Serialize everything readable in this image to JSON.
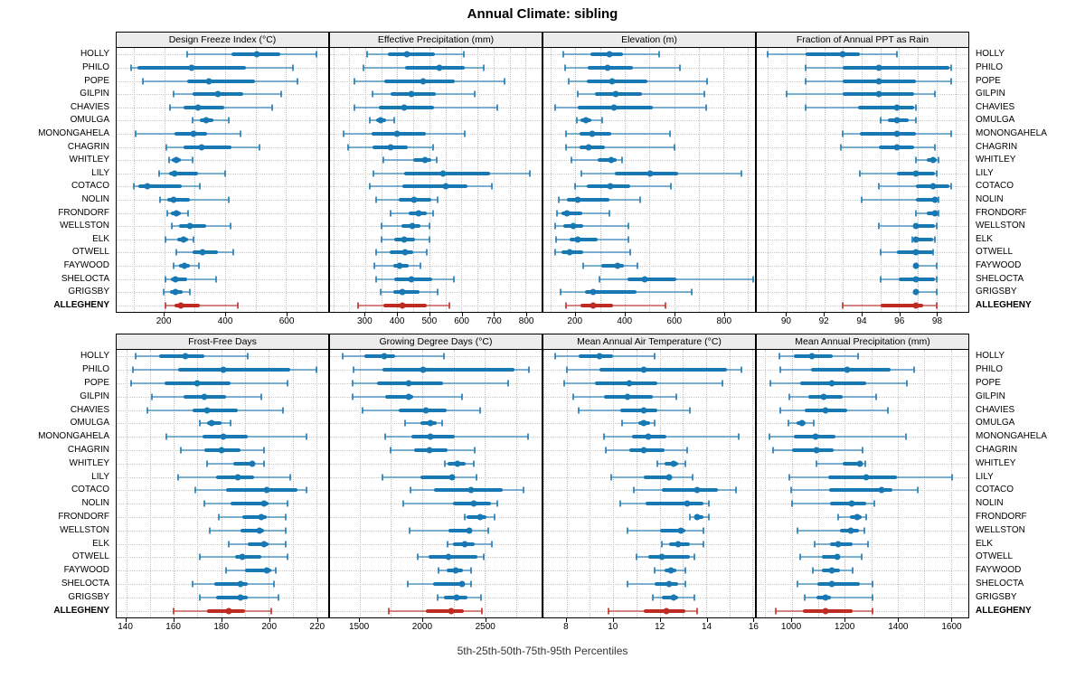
{
  "title": "Annual Climate: sibling",
  "footer": "5th-25th-50th-75th-95th Percentiles",
  "colors": {
    "series": "#1878b4",
    "highlight": "#bd2b23",
    "strip_bg": "#ececec",
    "grid": "#bfbfbf"
  },
  "sites": [
    "HOLLY",
    "PHILO",
    "POPE",
    "GILPIN",
    "CHAVIES",
    "OMULGA",
    "MONONGAHELA",
    "CHAGRIN",
    "WHITLEY",
    "LILY",
    "COTACO",
    "NOLIN",
    "FRONDORF",
    "WELLSTON",
    "ELK",
    "OTWELL",
    "FAYWOOD",
    "SHELOCTA",
    "GRIGSBY",
    "ALLEGHENY"
  ],
  "highlight_site": "ALLEGHENY",
  "percentile_labels": [
    "5th",
    "25th",
    "50th",
    "75th",
    "95th"
  ],
  "chart_data": [
    {
      "type": "dotplot-interval",
      "title": "Design Freeze Index (°C)",
      "xlim": [
        44,
        738
      ],
      "ticks": [
        200,
        400,
        600
      ],
      "grid_step": 100,
      "values": [
        [
          276,
          421,
          505,
          582,
          698
        ],
        [
          90,
          112,
          291,
          469,
          621
        ],
        [
          130,
          274,
          347,
          497,
          638
        ],
        [
          231,
          293,
          376,
          460,
          584
        ],
        [
          220,
          262,
          311,
          396,
          553
        ],
        [
          293,
          318,
          337,
          362,
          411
        ],
        [
          107,
          234,
          295,
          342,
          450
        ],
        [
          207,
          264,
          323,
          420,
          514
        ],
        [
          217,
          226,
          239,
          254,
          293
        ],
        [
          183,
          217,
          234,
          311,
          399
        ],
        [
          100,
          115,
          144,
          259,
          318
        ],
        [
          185,
          210,
          232,
          283,
          411
        ],
        [
          210,
          223,
          239,
          256,
          278
        ],
        [
          225,
          249,
          283,
          337,
          419
        ],
        [
          203,
          242,
          262,
          278,
          296
        ],
        [
          239,
          293,
          327,
          376,
          428
        ],
        [
          232,
          249,
          266,
          283,
          313
        ],
        [
          205,
          223,
          237,
          274,
          370
        ],
        [
          198,
          220,
          237,
          262,
          283
        ],
        [
          205,
          234,
          256,
          318,
          442
        ]
      ]
    },
    {
      "type": "dotplot-interval",
      "title": "Effective Precipitation (mm)",
      "xlim": [
        190,
        850
      ],
      "ticks": [
        300,
        400,
        500,
        600,
        700,
        800
      ],
      "grid_step": 50,
      "values": [
        [
          305,
          370,
          429,
          517,
          607
        ],
        [
          295,
          424,
          531,
          609,
          669
        ],
        [
          267,
          359,
          480,
          580,
          735
        ],
        [
          322,
          378,
          445,
          520,
          641
        ],
        [
          267,
          342,
          422,
          515,
          711
        ],
        [
          314,
          333,
          348,
          364,
          389
        ],
        [
          232,
          321,
          398,
          489,
          609
        ],
        [
          247,
          323,
          379,
          434,
          512
        ],
        [
          356,
          450,
          487,
          506,
          522
        ],
        [
          325,
          422,
          543,
          688,
          812
        ],
        [
          314,
          417,
          551,
          618,
          695
        ],
        [
          333,
          403,
          452,
          506,
          527
        ],
        [
          378,
          436,
          466,
          492,
          512
        ],
        [
          350,
          412,
          448,
          473,
          501
        ],
        [
          350,
          391,
          420,
          454,
          501
        ],
        [
          335,
          375,
          424,
          450,
          492
        ],
        [
          328,
          387,
          408,
          434,
          473
        ],
        [
          335,
          391,
          443,
          510,
          576
        ],
        [
          347,
          387,
          417,
          468,
          527
        ],
        [
          277,
          356,
          415,
          492,
          562
        ]
      ]
    },
    {
      "type": "dotplot-interval",
      "title": "Elevation (m)",
      "xlim": [
        70,
        928
      ],
      "ticks": [
        200,
        400,
        600,
        800
      ],
      "grid_step": 100,
      "values": [
        [
          152,
          261,
          336,
          394,
          539
        ],
        [
          158,
          251,
          330,
          433,
          624
        ],
        [
          172,
          245,
          348,
          490,
          733
        ],
        [
          208,
          279,
          362,
          469,
          721
        ],
        [
          118,
          211,
          356,
          514,
          730
        ],
        [
          206,
          221,
          241,
          263,
          308
        ],
        [
          160,
          215,
          267,
          345,
          582
        ],
        [
          160,
          218,
          255,
          318,
          602
        ],
        [
          184,
          291,
          344,
          368,
          388
        ],
        [
          224,
          360,
          503,
          615,
          873
        ],
        [
          200,
          245,
          342,
          423,
          587
        ],
        [
          132,
          166,
          208,
          336,
          463
        ],
        [
          124,
          142,
          166,
          227,
          339
        ],
        [
          118,
          150,
          190,
          233,
          414
        ],
        [
          121,
          175,
          211,
          291,
          414
        ],
        [
          118,
          145,
          178,
          233,
          423
        ],
        [
          230,
          305,
          372,
          395,
          453
        ],
        [
          299,
          412,
          479,
          608,
          921
        ],
        [
          139,
          239,
          272,
          448,
          673
        ],
        [
          160,
          221,
          272,
          354,
          564
        ]
      ]
    },
    {
      "type": "dotplot-interval",
      "title": "Fraction of Annual PPT as Rain",
      "xlim": [
        88.4,
        99.7
      ],
      "ticks": [
        90,
        92,
        94,
        96,
        98
      ],
      "grid_step": 1,
      "values": [
        [
          89.0,
          91.0,
          93.0,
          93.9,
          95.9
        ],
        [
          91.0,
          93.0,
          94.9,
          98.7,
          98.8
        ],
        [
          91.0,
          93.0,
          94.9,
          96.9,
          98.8
        ],
        [
          90.0,
          93.0,
          94.9,
          96.8,
          97.9
        ],
        [
          91.0,
          93.8,
          95.9,
          96.8,
          96.9
        ],
        [
          95.0,
          95.4,
          95.9,
          96.5,
          96.9
        ],
        [
          93.0,
          93.9,
          95.9,
          96.9,
          98.8
        ],
        [
          92.9,
          94.9,
          95.9,
          96.8,
          97.9
        ],
        [
          96.9,
          97.5,
          97.8,
          98.0,
          98.1
        ],
        [
          93.9,
          95.9,
          96.9,
          97.9,
          98.0
        ],
        [
          94.9,
          96.9,
          97.8,
          98.7,
          98.8
        ],
        [
          94.0,
          96.9,
          97.9,
          98.0,
          98.1
        ],
        [
          96.9,
          97.5,
          97.9,
          98.0,
          98.1
        ],
        [
          94.9,
          96.8,
          96.9,
          97.9,
          98.0
        ],
        [
          96.7,
          96.8,
          96.9,
          97.8,
          97.9
        ],
        [
          95.0,
          95.9,
          96.9,
          97.8,
          97.8
        ],
        [
          96.9,
          96.9,
          96.9,
          97.0,
          98.0
        ],
        [
          95.0,
          96.0,
          96.9,
          97.9,
          98.0
        ],
        [
          96.9,
          96.9,
          96.9,
          97.0,
          98.0
        ],
        [
          93.0,
          95.0,
          96.9,
          97.3,
          98.0
        ]
      ]
    },
    {
      "type": "dotplot-interval",
      "title": "Frost-Free Days",
      "xlim": [
        136,
        225
      ],
      "ticks": [
        140,
        160,
        180,
        200,
        220
      ],
      "grid_step": 10,
      "values": [
        [
          144,
          154,
          165,
          173,
          191
        ],
        [
          143,
          162,
          181,
          209,
          220
        ],
        [
          142,
          156,
          170,
          184,
          208
        ],
        [
          151,
          164,
          173,
          182,
          197
        ],
        [
          149,
          168,
          174,
          187,
          206
        ],
        [
          171,
          174,
          176,
          180,
          184
        ],
        [
          157,
          172,
          181,
          191,
          216
        ],
        [
          163,
          173,
          180,
          188,
          198
        ],
        [
          174,
          185,
          193,
          194,
          198
        ],
        [
          162,
          178,
          187,
          194,
          209
        ],
        [
          169,
          182,
          199,
          212,
          216
        ],
        [
          173,
          184,
          198,
          200,
          208
        ],
        [
          179,
          189,
          197,
          199,
          207
        ],
        [
          175,
          188,
          196,
          198,
          207
        ],
        [
          183,
          191,
          198,
          200,
          207
        ],
        [
          171,
          186,
          189,
          197,
          208
        ],
        [
          182,
          190,
          199,
          201,
          203
        ],
        [
          168,
          177,
          188,
          191,
          202
        ],
        [
          171,
          178,
          188,
          191,
          204
        ],
        [
          160,
          174,
          183,
          190,
          201
        ]
      ]
    },
    {
      "type": "dotplot-interval",
      "title": "Growing Degree Days (°C)",
      "xlim": [
        1263,
        2953
      ],
      "ticks": [
        1500,
        2000,
        2500
      ],
      "grid_step": 250,
      "values": [
        [
          1361,
          1534,
          1697,
          1781,
          2171
        ],
        [
          1452,
          1685,
          2004,
          2740,
          2852
        ],
        [
          1445,
          1637,
          1893,
          2164,
          2685
        ],
        [
          1445,
          1701,
          1893,
          1924,
          2315
        ],
        [
          1524,
          1812,
          2032,
          2195,
          2459
        ],
        [
          1860,
          1984,
          2068,
          2116,
          2157
        ],
        [
          1701,
          1912,
          2068,
          2260,
          2843
        ],
        [
          1749,
          1932,
          2061,
          2205,
          2416
        ],
        [
          2181,
          2205,
          2284,
          2344,
          2411
        ],
        [
          1685,
          1984,
          2236,
          2243,
          2435
        ],
        [
          1908,
          2092,
          2392,
          2644,
          2812
        ],
        [
          1848,
          2248,
          2409,
          2548,
          2596
        ],
        [
          2339,
          2356,
          2459,
          2512,
          2579
        ],
        [
          1900,
          2212,
          2373,
          2380,
          2529
        ],
        [
          2205,
          2248,
          2337,
          2416,
          2555
        ],
        [
          1965,
          2052,
          2212,
          2440,
          2493
        ],
        [
          2133,
          2195,
          2267,
          2325,
          2392
        ],
        [
          1884,
          2085,
          2315,
          2332,
          2387
        ],
        [
          2123,
          2176,
          2272,
          2363,
          2469
        ],
        [
          1733,
          2032,
          2229,
          2332,
          2476
        ]
      ]
    },
    {
      "type": "dotplot-interval",
      "title": "Mean Annual Air Temperature (°C)",
      "xlim": [
        7.0,
        16.1
      ],
      "ticks": [
        8,
        10,
        12,
        14,
        16
      ],
      "grid_step": 1,
      "values": [
        [
          7.5,
          8.5,
          9.4,
          10.0,
          11.8
        ],
        [
          8.0,
          9.4,
          11.3,
          14.9,
          15.5
        ],
        [
          7.9,
          9.2,
          10.7,
          11.9,
          14.7
        ],
        [
          8.3,
          9.6,
          10.6,
          11.7,
          12.7
        ],
        [
          8.5,
          10.3,
          11.3,
          11.9,
          13.3
        ],
        [
          10.4,
          11.1,
          11.3,
          11.6,
          11.8
        ],
        [
          9.6,
          10.8,
          11.5,
          12.3,
          15.4
        ],
        [
          9.7,
          10.7,
          11.3,
          12.2,
          13.2
        ],
        [
          11.9,
          12.2,
          12.6,
          12.8,
          13.1
        ],
        [
          9.9,
          11.3,
          12.4,
          12.5,
          13.4
        ],
        [
          10.9,
          12.1,
          13.6,
          14.5,
          15.3
        ],
        [
          10.3,
          11.4,
          13.2,
          13.9,
          14.1
        ],
        [
          13.3,
          13.5,
          13.6,
          13.9,
          14.1
        ],
        [
          10.6,
          12.0,
          12.9,
          13.1,
          13.9
        ],
        [
          12.1,
          12.4,
          12.8,
          13.3,
          13.9
        ],
        [
          11.0,
          11.5,
          12.1,
          13.3,
          13.5
        ],
        [
          11.8,
          12.2,
          12.5,
          12.7,
          13.1
        ],
        [
          10.6,
          11.8,
          12.4,
          12.8,
          13.1
        ],
        [
          11.7,
          12.1,
          12.6,
          12.8,
          13.5
        ],
        [
          9.8,
          11.3,
          12.3,
          13.1,
          13.6
        ]
      ]
    },
    {
      "type": "dotplot-interval",
      "title": "Mean Annual Precipitation (mm)",
      "xlim": [
        868,
        1666
      ],
      "ticks": [
        1000,
        1200,
        1400,
        1600
      ],
      "grid_step": 100,
      "values": [
        [
          954,
          1009,
          1077,
          1155,
          1251
        ],
        [
          958,
          1072,
          1210,
          1373,
          1461
        ],
        [
          920,
          1031,
          1152,
          1282,
          1434
        ],
        [
          992,
          1061,
          1122,
          1193,
          1318
        ],
        [
          958,
          1048,
          1127,
          1210,
          1361
        ],
        [
          987,
          1017,
          1039,
          1053,
          1083
        ],
        [
          917,
          1009,
          1088,
          1164,
          1429
        ],
        [
          931,
          1000,
          1094,
          1157,
          1267
        ],
        [
          1094,
          1193,
          1256,
          1265,
          1276
        ],
        [
          991,
          1138,
          1280,
          1398,
          1605
        ],
        [
          998,
          1141,
          1337,
          1378,
          1475
        ],
        [
          1001,
          1144,
          1226,
          1281,
          1310
        ],
        [
          1175,
          1218,
          1245,
          1264,
          1281
        ],
        [
          1022,
          1182,
          1221,
          1253,
          1275
        ],
        [
          1087,
          1144,
          1176,
          1230,
          1287
        ],
        [
          1033,
          1113,
          1170,
          1182,
          1262
        ],
        [
          1080,
          1114,
          1151,
          1183,
          1231
        ],
        [
          1021,
          1097,
          1152,
          1257,
          1306
        ],
        [
          1048,
          1094,
          1126,
          1146,
          1303
        ],
        [
          941,
          1043,
          1128,
          1229,
          1306
        ]
      ]
    }
  ]
}
